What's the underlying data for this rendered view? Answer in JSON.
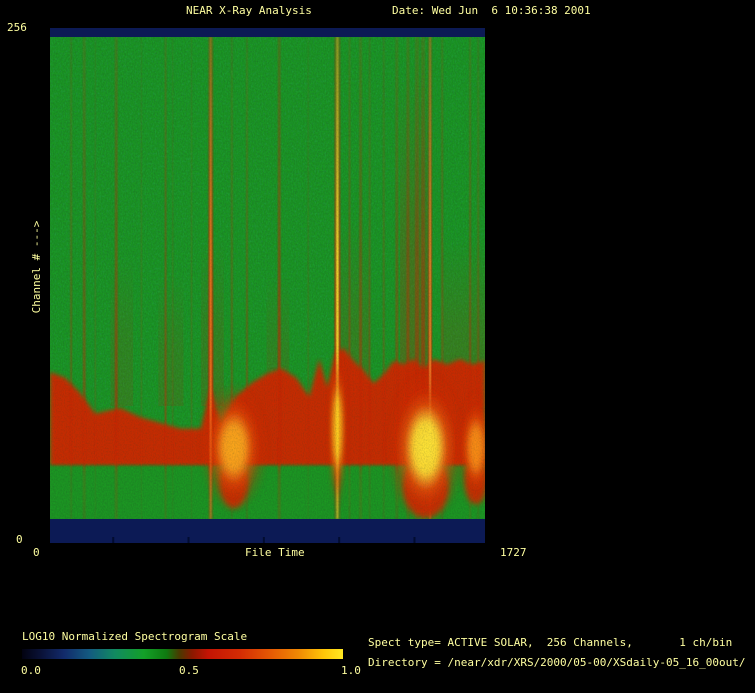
{
  "header": {
    "title": "NEAR X-Ray Analysis",
    "date": "Date: Wed Jun  6 10:36:38 2001"
  },
  "axes": {
    "y_max": "256",
    "y_min": "0",
    "y_title": "Channel # --->",
    "x_min": "0",
    "x_max": "1727",
    "x_title": "File Time"
  },
  "colorbar": {
    "title": "LOG10 Normalized Spectrogram Scale",
    "tick_low": "0.0",
    "tick_mid": "0.5",
    "tick_high": "1.0"
  },
  "info": {
    "spect_line": "Spect type= ACTIVE SOLAR,  256 Channels,       1 ch/bin",
    "directory_line": "Directory = /near/xdr/XRS/2000/05-00/XSdaily-05_16_00out/"
  },
  "colors": {
    "text": "#ffffa0",
    "background": "#000000",
    "frame_band": "#0c1a55",
    "base_green": "#1a9a22",
    "streak_red": "#c62408",
    "band_red": "#cf2606",
    "tick_dark": "#020c30"
  },
  "chart_data": {
    "type": "heatmap",
    "title": "NEAR X-Ray Analysis",
    "xlabel": "File Time",
    "ylabel": "Channel #",
    "xlim": [
      0,
      1727
    ],
    "ylim": [
      0,
      256
    ],
    "scale": {
      "label": "LOG10 Normalized Spectrogram Scale",
      "range": [
        0.0,
        1.0
      ],
      "colormap": [
        [
          0.0,
          "#020210"
        ],
        [
          0.06,
          "#0a1238"
        ],
        [
          0.13,
          "#122a6a"
        ],
        [
          0.21,
          "#135a80"
        ],
        [
          0.29,
          "#118a60"
        ],
        [
          0.38,
          "#13a028"
        ],
        [
          0.45,
          "#0f7a10"
        ],
        [
          0.49,
          "#4a3a00"
        ],
        [
          0.53,
          "#8a1800"
        ],
        [
          0.58,
          "#c41404"
        ],
        [
          0.68,
          "#d42c04"
        ],
        [
          0.78,
          "#e65c04"
        ],
        [
          0.86,
          "#f08804"
        ],
        [
          0.94,
          "#ffc608"
        ],
        [
          1.0,
          "#ffe822"
        ]
      ]
    },
    "background_value": 0.42,
    "x_minor_ticks": [
      251,
      550,
      849,
      1148,
      1447
    ],
    "vertical_streaks": [
      {
        "t": 84,
        "intensity": 0.4,
        "w": 2
      },
      {
        "t": 136,
        "intensity": 0.5,
        "w": 3
      },
      {
        "t": 180,
        "intensity": 0.3,
        "w": 1
      },
      {
        "t": 263,
        "intensity": 0.6,
        "w": 3
      },
      {
        "t": 363,
        "intensity": 0.3,
        "w": 1
      },
      {
        "t": 459,
        "intensity": 0.55,
        "w": 2
      },
      {
        "t": 487,
        "intensity": 0.3,
        "w": 1
      },
      {
        "t": 562,
        "intensity": 0.35,
        "w": 1
      },
      {
        "t": 638,
        "intensity": 0.95,
        "w": 5,
        "core": "#ff7820"
      },
      {
        "t": 722,
        "intensity": 0.4,
        "w": 2
      },
      {
        "t": 782,
        "intensity": 0.45,
        "w": 2
      },
      {
        "t": 910,
        "intensity": 0.75,
        "w": 3
      },
      {
        "t": 1025,
        "intensity": 0.3,
        "w": 1
      },
      {
        "t": 1141,
        "intensity": 1.0,
        "w": 6,
        "core": "#ffe030"
      },
      {
        "t": 1189,
        "intensity": 0.5,
        "w": 2
      },
      {
        "t": 1233,
        "intensity": 0.55,
        "w": 3
      },
      {
        "t": 1269,
        "intensity": 0.4,
        "w": 2
      },
      {
        "t": 1325,
        "intensity": 0.35,
        "w": 2
      },
      {
        "t": 1377,
        "intensity": 0.5,
        "w": 3
      },
      {
        "t": 1421,
        "intensity": 0.55,
        "w": 3
      },
      {
        "t": 1457,
        "intensity": 0.55,
        "w": 4
      },
      {
        "t": 1481,
        "intensity": 0.6,
        "w": 4
      },
      {
        "t": 1509,
        "intensity": 0.9,
        "w": 4,
        "core": "#ff9830"
      },
      {
        "t": 1557,
        "intensity": 0.5,
        "w": 2
      },
      {
        "t": 1668,
        "intensity": 0.55,
        "w": 2
      },
      {
        "t": 1700,
        "intensity": 0.4,
        "w": 2
      }
    ],
    "diffuse_washes": [
      {
        "t0": 240,
        "t1": 330,
        "ch_top": 140,
        "op": 0.15
      },
      {
        "t0": 430,
        "t1": 530,
        "ch_top": 130,
        "op": 0.15
      },
      {
        "t0": 600,
        "t1": 690,
        "ch_top": 150,
        "op": 0.18
      },
      {
        "t0": 860,
        "t1": 950,
        "ch_top": 130,
        "op": 0.15
      },
      {
        "t0": 1150,
        "t1": 1270,
        "ch_top": 160,
        "op": 0.18
      },
      {
        "t0": 1390,
        "t1": 1515,
        "ch_top": 235,
        "op": 0.3
      },
      {
        "t0": 1560,
        "t1": 1727,
        "ch_top": 150,
        "op": 0.2
      }
    ],
    "low_band": {
      "bottom_channel": 28,
      "top_profile": [
        [
          0,
          78
        ],
        [
          60,
          75
        ],
        [
          120,
          67
        ],
        [
          180,
          56
        ],
        [
          279,
          59
        ],
        [
          359,
          54
        ],
        [
          439,
          51
        ],
        [
          519,
          48
        ],
        [
          599,
          48
        ],
        [
          638,
          70
        ],
        [
          678,
          51
        ],
        [
          738,
          65
        ],
        [
          798,
          72
        ],
        [
          858,
          77
        ],
        [
          918,
          80
        ],
        [
          978,
          75
        ],
        [
          1029,
          65
        ],
        [
          1069,
          85
        ],
        [
          1101,
          70
        ],
        [
          1133,
          88
        ],
        [
          1165,
          91
        ],
        [
          1205,
          84
        ],
        [
          1245,
          79
        ],
        [
          1285,
          72
        ],
        [
          1325,
          77
        ],
        [
          1365,
          84
        ],
        [
          1405,
          82
        ],
        [
          1444,
          85
        ],
        [
          1484,
          80
        ],
        [
          1524,
          85
        ],
        [
          1576,
          82
        ],
        [
          1628,
          85
        ],
        [
          1676,
          82
        ],
        [
          1727,
          84
        ]
      ],
      "hotspots": [
        {
          "t": 730,
          "ch": 38,
          "dt": 104,
          "dch": 28,
          "core": "#ffb020",
          "opacity": 0.9
        },
        {
          "t": 1141,
          "ch": 48,
          "dt": 30,
          "dch": 36,
          "core": "#ffd020",
          "opacity": 0.85
        },
        {
          "t": 1492,
          "ch": 38,
          "dt": 120,
          "dch": 33,
          "core": "#ffe838",
          "opacity": 1.0
        },
        {
          "t": 1691,
          "ch": 38,
          "dt": 56,
          "dch": 24,
          "core": "#ff9818",
          "opacity": 0.85
        }
      ],
      "dips": [
        {
          "t": 730,
          "dt": 55,
          "ch_to": 10
        },
        {
          "t": 1492,
          "dt": 90,
          "ch_to": 5
        },
        {
          "t": 1691,
          "dt": 45,
          "ch_to": 12
        }
      ]
    }
  }
}
